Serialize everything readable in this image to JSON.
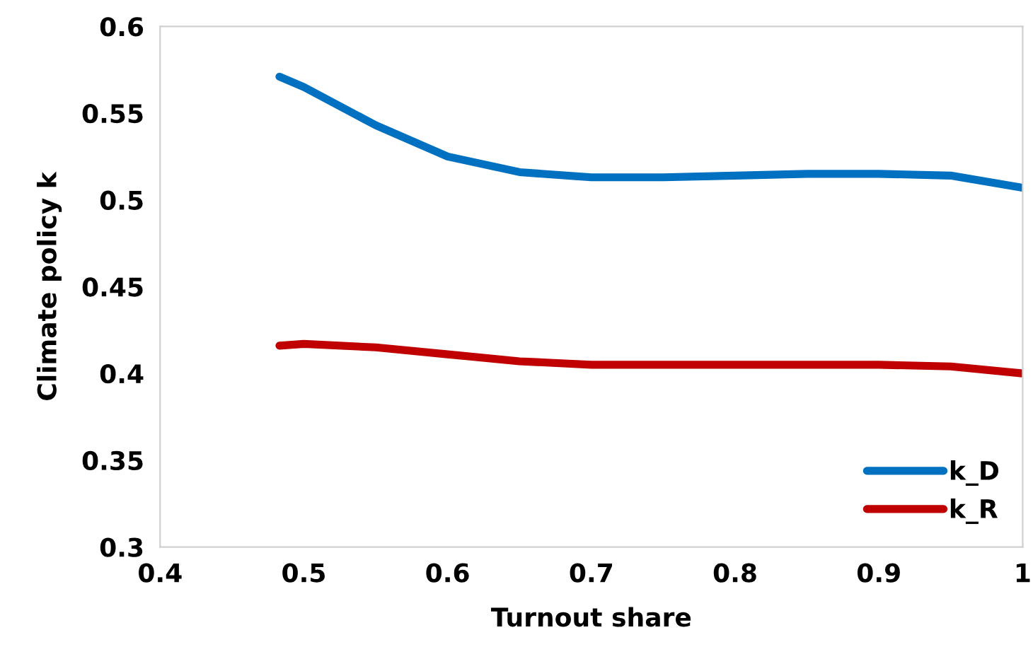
{
  "chart_data": {
    "type": "line",
    "xlabel": "Turnout share",
    "ylabel": "Climate policy k",
    "xlim": [
      0.4,
      1
    ],
    "xticks": [
      0.4,
      0.5,
      0.6,
      0.7,
      0.8,
      0.9,
      1
    ],
    "ylim": [
      0.3,
      0.6
    ],
    "yticks": [
      0.3,
      0.35,
      0.4,
      0.45,
      0.5,
      0.55,
      0.6
    ],
    "x": [
      0.483,
      0.5,
      0.55,
      0.6,
      0.65,
      0.7,
      0.75,
      0.8,
      0.85,
      0.9,
      0.95,
      1.0
    ],
    "series": [
      {
        "name": "k_D",
        "color": "#0070c0",
        "values": [
          0.571,
          0.565,
          0.543,
          0.525,
          0.516,
          0.513,
          0.513,
          0.514,
          0.515,
          0.515,
          0.514,
          0.507
        ]
      },
      {
        "name": "k_R",
        "color": "#c00000",
        "values": [
          0.416,
          0.417,
          0.415,
          0.411,
          0.407,
          0.405,
          0.405,
          0.405,
          0.405,
          0.405,
          0.404,
          0.4
        ]
      }
    ],
    "grid": false,
    "legend": "bottom right",
    "marker": "none",
    "line_style": "solid"
  }
}
